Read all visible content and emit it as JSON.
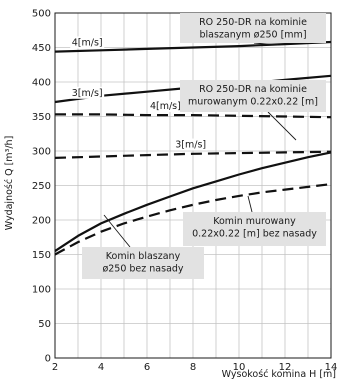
{
  "chart_data": {
    "type": "line",
    "xlabel": "Wysokość komina H [m]",
    "ylabel": "Wydajność Q [m³/h]",
    "xlim": [
      2,
      14
    ],
    "ylim": [
      0,
      500
    ],
    "xticks": [
      2,
      4,
      6,
      8,
      10,
      12,
      14
    ],
    "yticks": [
      0,
      50,
      100,
      150,
      200,
      250,
      300,
      350,
      400,
      450,
      500
    ],
    "grid": true,
    "series": [
      {
        "name": "RO 250-DR na kominie blaszanym ø250 [mm]",
        "style": "solid",
        "x": [
          2,
          4,
          6,
          8,
          10,
          12,
          14
        ],
        "y": [
          444,
          446,
          448,
          450,
          452,
          455,
          458
        ]
      },
      {
        "name": "RO 250-DR na kominie murowanym 0.22x0.22 [m]",
        "style": "solid",
        "x": [
          2,
          4,
          6,
          8,
          10,
          12,
          14
        ],
        "y": [
          371,
          380,
          386,
          392,
          397,
          403,
          409
        ]
      },
      {
        "style": "dashed",
        "x": [
          2,
          4,
          6,
          8,
          10,
          12,
          14
        ],
        "y": [
          353,
          353,
          352,
          352,
          351,
          350,
          349
        ]
      },
      {
        "style": "dashed",
        "x": [
          2,
          4,
          6,
          8,
          10,
          12,
          14
        ],
        "y": [
          290,
          292,
          294,
          296,
          297,
          298,
          299
        ]
      },
      {
        "name": "Komin blaszany ø250 bez nasady",
        "style": "solid",
        "x": [
          2,
          3,
          4,
          5,
          6,
          7,
          8,
          9,
          10,
          11,
          12,
          13,
          14
        ],
        "y": [
          155,
          177,
          195,
          209,
          222,
          234,
          246,
          256,
          266,
          275,
          283,
          291,
          298
        ]
      },
      {
        "name": "Komin murowany 0.22x0.22 [m] bez nasady",
        "style": "dashed",
        "x": [
          2,
          3,
          4,
          5,
          6,
          7,
          8,
          9,
          10,
          11,
          12,
          13,
          14
        ],
        "y": [
          150,
          168,
          183,
          195,
          205,
          214,
          222,
          229,
          235,
          240,
          244,
          248,
          252
        ]
      }
    ],
    "annotations": [
      {
        "text": "4[m/s]",
        "x": 3.4,
        "y": 453
      },
      {
        "text": "3[m/s]",
        "x": 3.4,
        "y": 380
      },
      {
        "text": "4[m/s]",
        "x": 6.8,
        "y": 361
      },
      {
        "text": "3[m/s]",
        "x": 7.9,
        "y": 305
      }
    ],
    "labels": [
      {
        "lines": [
          "RO 250-DR na kominie",
          "blaszanym ø250 [mm]"
        ]
      },
      {
        "lines": [
          "RO 250-DR na kominie",
          "murowanym 0.22x0.22 [m]"
        ]
      },
      {
        "lines": [
          "Komin murowany",
          "0.22x0.22 [m] bez nasady"
        ]
      },
      {
        "lines": [
          "Komin blaszany",
          "ø250 bez nasady"
        ]
      }
    ]
  }
}
